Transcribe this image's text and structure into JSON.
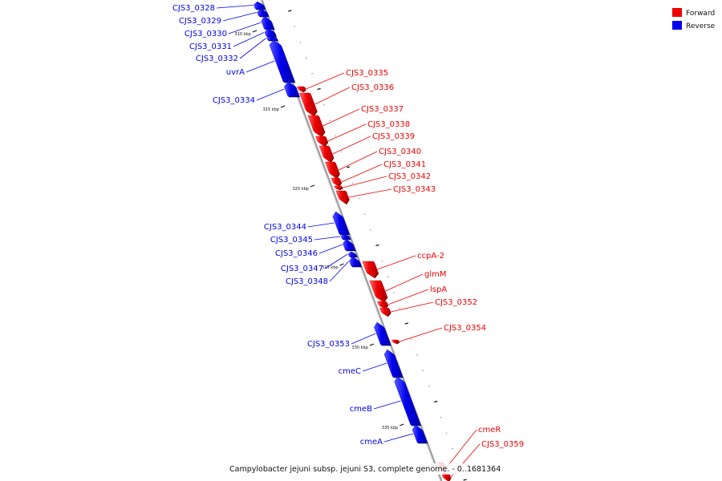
{
  "caption": "Campylobacter jejuni subsp. jejuni S3, complete genome. - 0..1681364",
  "legend": [
    {
      "label": "Forward",
      "color": "#ee0000"
    },
    {
      "label": "Reverse",
      "color": "#0000ee"
    }
  ],
  "colors": {
    "forward": "#ee0000",
    "reverse": "#0000ee",
    "backbone": "#999999"
  },
  "scale_labels": [
    "310 kbp",
    "315 kbp",
    "320 kbp",
    "325 kbp",
    "330 kbp",
    "335 kbp"
  ],
  "genes": [
    {
      "name": "CJS3_0328",
      "strand": "reverse"
    },
    {
      "name": "CJS3_0329",
      "strand": "reverse"
    },
    {
      "name": "CJS3_0330",
      "strand": "reverse"
    },
    {
      "name": "CJS3_0331",
      "strand": "reverse"
    },
    {
      "name": "CJS3_0332",
      "strand": "reverse"
    },
    {
      "name": "uvrA",
      "strand": "reverse"
    },
    {
      "name": "CJS3_0334",
      "strand": "reverse"
    },
    {
      "name": "CJS3_0335",
      "strand": "forward"
    },
    {
      "name": "CJS3_0336",
      "strand": "forward"
    },
    {
      "name": "CJS3_0337",
      "strand": "forward"
    },
    {
      "name": "CJS3_0338",
      "strand": "forward"
    },
    {
      "name": "CJS3_0339",
      "strand": "forward"
    },
    {
      "name": "CJS3_0340",
      "strand": "forward"
    },
    {
      "name": "CJS3_0341",
      "strand": "forward"
    },
    {
      "name": "CJS3_0342",
      "strand": "forward"
    },
    {
      "name": "CJS3_0343",
      "strand": "forward"
    },
    {
      "name": "CJS3_0344",
      "strand": "reverse"
    },
    {
      "name": "CJS3_0345",
      "strand": "reverse"
    },
    {
      "name": "CJS3_0346",
      "strand": "reverse"
    },
    {
      "name": "CJS3_0347",
      "strand": "reverse"
    },
    {
      "name": "CJS3_0348",
      "strand": "reverse"
    },
    {
      "name": "ccpA-2",
      "strand": "forward"
    },
    {
      "name": "glmM",
      "strand": "forward"
    },
    {
      "name": "lspA",
      "strand": "forward"
    },
    {
      "name": "CJS3_0352",
      "strand": "forward"
    },
    {
      "name": "CJS3_0353",
      "strand": "reverse"
    },
    {
      "name": "CJS3_0354",
      "strand": "forward"
    },
    {
      "name": "cmeC",
      "strand": "reverse"
    },
    {
      "name": "cmeB",
      "strand": "reverse"
    },
    {
      "name": "cmeA",
      "strand": "reverse"
    },
    {
      "name": "cmeR",
      "strand": "forward"
    },
    {
      "name": "CJS3_0359",
      "strand": "forward"
    }
  ]
}
